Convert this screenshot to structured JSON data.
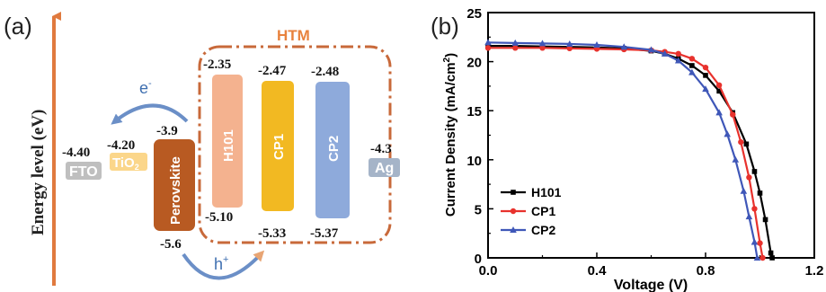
{
  "panel_a": {
    "label": "(a)",
    "y_axis_label": "Energy level (eV)",
    "htm_label": "HTM",
    "electron_label": "e",
    "electron_sup": "-",
    "hole_label": "h",
    "hole_sup": "+",
    "levels": {
      "fto": "-4.40",
      "tio2": "-4.20",
      "pero_lumo": "-3.9",
      "pero_homo": "-5.6",
      "h101_lumo": "-2.35",
      "h101_homo": "-5.10",
      "cp1_lumo": "-2.47",
      "cp1_homo": "-5.33",
      "cp2_lumo": "-2.48",
      "cp2_homo": "-5.37",
      "ag": "-4.3"
    },
    "materials": {
      "fto": "FTO",
      "tio2": "TiO",
      "tio2_sub": "2",
      "perovskite": "Perovskite",
      "h101": "H101",
      "cp1": "CP1",
      "cp2": "CP2",
      "ag": "Ag"
    },
    "colors": {
      "arrow": "#e07a3e",
      "htm_box": "#c8693a",
      "fto": "#bfbfbf",
      "tio2": "#fbd68a",
      "perovskite": "#b85a22",
      "h101": "#f4b28f",
      "cp1": "#f2b922",
      "cp2": "#8eaadb",
      "ag": "#a5b4c8",
      "curve_arrow": "#6b8fc7"
    }
  },
  "panel_b": {
    "label": "(b)"
  },
  "chart_data": {
    "type": "line",
    "xlabel": "Voltage (V)",
    "ylabel": "Current Density (mA/cm",
    "ylabel_sup": "2",
    "ylabel_end": ")",
    "xlim": [
      0.0,
      1.2
    ],
    "ylim": [
      0,
      25
    ],
    "xticks": [
      "0.0",
      "0.4",
      "0.8",
      "1.2"
    ],
    "yticks": [
      "0",
      "5",
      "10",
      "15",
      "20",
      "25"
    ],
    "legend_position": "bottom-left",
    "grid": false,
    "series": [
      {
        "name": "H101",
        "color": "#000000",
        "marker": "square",
        "points": [
          [
            0.0,
            21.6
          ],
          [
            0.1,
            21.6
          ],
          [
            0.2,
            21.55
          ],
          [
            0.3,
            21.5
          ],
          [
            0.4,
            21.45
          ],
          [
            0.5,
            21.35
          ],
          [
            0.6,
            21.1
          ],
          [
            0.65,
            20.8
          ],
          [
            0.7,
            20.3
          ],
          [
            0.75,
            19.6
          ],
          [
            0.8,
            18.6
          ],
          [
            0.85,
            17.0
          ],
          [
            0.9,
            14.8
          ],
          [
            0.95,
            11.6
          ],
          [
            0.98,
            8.8
          ],
          [
            1.0,
            6.6
          ],
          [
            1.02,
            3.9
          ],
          [
            1.04,
            0.5
          ],
          [
            1.045,
            0
          ]
        ]
      },
      {
        "name": "CP1",
        "color": "#e8322d",
        "marker": "circle",
        "points": [
          [
            0.0,
            21.4
          ],
          [
            0.1,
            21.4
          ],
          [
            0.2,
            21.4
          ],
          [
            0.3,
            21.35
          ],
          [
            0.4,
            21.3
          ],
          [
            0.5,
            21.25
          ],
          [
            0.6,
            21.15
          ],
          [
            0.65,
            21.0
          ],
          [
            0.7,
            20.8
          ],
          [
            0.75,
            20.3
          ],
          [
            0.8,
            19.4
          ],
          [
            0.85,
            17.6
          ],
          [
            0.9,
            14.6
          ],
          [
            0.93,
            11.8
          ],
          [
            0.96,
            8.2
          ],
          [
            0.98,
            5.0
          ],
          [
            1.0,
            1.5
          ],
          [
            1.01,
            0
          ]
        ]
      },
      {
        "name": "CP2",
        "color": "#3f57b8",
        "marker": "triangle",
        "points": [
          [
            0.0,
            21.95
          ],
          [
            0.1,
            21.9
          ],
          [
            0.2,
            21.85
          ],
          [
            0.3,
            21.8
          ],
          [
            0.4,
            21.7
          ],
          [
            0.5,
            21.5
          ],
          [
            0.6,
            21.2
          ],
          [
            0.65,
            20.8
          ],
          [
            0.7,
            20.1
          ],
          [
            0.75,
            18.9
          ],
          [
            0.8,
            17.2
          ],
          [
            0.85,
            14.8
          ],
          [
            0.88,
            12.6
          ],
          [
            0.91,
            10.0
          ],
          [
            0.94,
            6.8
          ],
          [
            0.96,
            4.2
          ],
          [
            0.98,
            1.6
          ],
          [
            0.99,
            0
          ]
        ]
      }
    ]
  }
}
